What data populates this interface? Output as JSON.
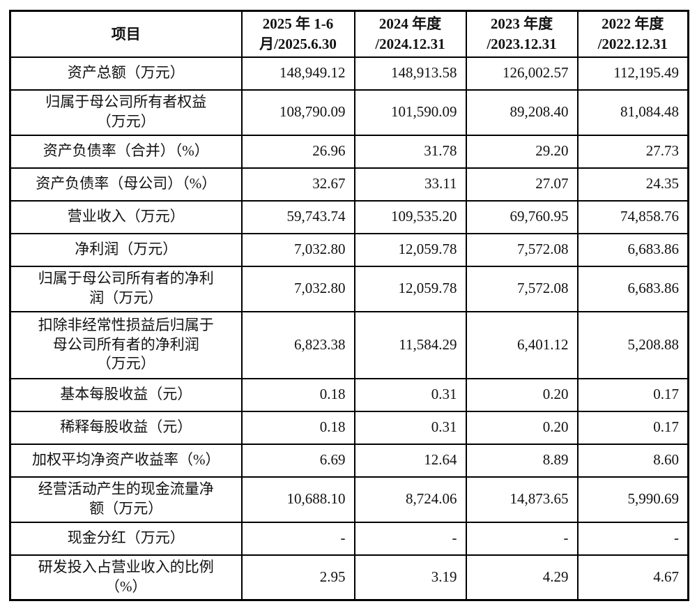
{
  "table": {
    "name": "financial-summary-table",
    "columns": [
      {
        "label": "项目"
      },
      {
        "label": "2025 年 1-6\n月/2025.6.30"
      },
      {
        "label": "2024 年度\n/2024.12.31"
      },
      {
        "label": "2023 年度\n/2023.12.31"
      },
      {
        "label": "2022 年度\n/2022.12.31"
      }
    ],
    "rows": [
      {
        "label": "资产总额（万元）",
        "values": [
          "148,949.12",
          "148,913.58",
          "126,002.57",
          "112,195.49"
        ]
      },
      {
        "label": "归属于母公司所有者权益\n（万元）",
        "values": [
          "108,790.09",
          "101,590.09",
          "89,208.40",
          "81,084.48"
        ]
      },
      {
        "label": "资产负债率（合并）（%）",
        "values": [
          "26.96",
          "31.78",
          "29.20",
          "27.73"
        ]
      },
      {
        "label": "资产负债率（母公司）（%）",
        "values": [
          "32.67",
          "33.11",
          "27.07",
          "24.35"
        ]
      },
      {
        "label": "营业收入（万元）",
        "values": [
          "59,743.74",
          "109,535.20",
          "69,760.95",
          "74,858.76"
        ]
      },
      {
        "label": "净利润（万元）",
        "values": [
          "7,032.80",
          "12,059.78",
          "7,572.08",
          "6,683.86"
        ]
      },
      {
        "label": "归属于母公司所有者的净利\n润（万元）",
        "values": [
          "7,032.80",
          "12,059.78",
          "7,572.08",
          "6,683.86"
        ]
      },
      {
        "label": "扣除非经常性损益后归属于\n母公司所有者的净利润\n（万元）",
        "values": [
          "6,823.38",
          "11,584.29",
          "6,401.12",
          "5,208.88"
        ]
      },
      {
        "label": "基本每股收益（元）",
        "values": [
          "0.18",
          "0.31",
          "0.20",
          "0.17"
        ]
      },
      {
        "label": "稀释每股收益（元）",
        "values": [
          "0.18",
          "0.31",
          "0.20",
          "0.17"
        ]
      },
      {
        "label": "加权平均净资产收益率（%）",
        "values": [
          "6.69",
          "12.64",
          "8.89",
          "8.60"
        ]
      },
      {
        "label": "经营活动产生的现金流量净\n额（万元）",
        "values": [
          "10,688.10",
          "8,724.06",
          "14,873.65",
          "5,990.69"
        ]
      },
      {
        "label": "现金分红（万元）",
        "values": [
          "-",
          "-",
          "-",
          "-"
        ]
      },
      {
        "label": "研发投入占营业收入的比例\n（%）",
        "values": [
          "2.95",
          "3.19",
          "4.29",
          "4.67"
        ]
      }
    ],
    "colors": {
      "border": "#000000",
      "text": "#111111",
      "background": "#ffffff"
    }
  }
}
